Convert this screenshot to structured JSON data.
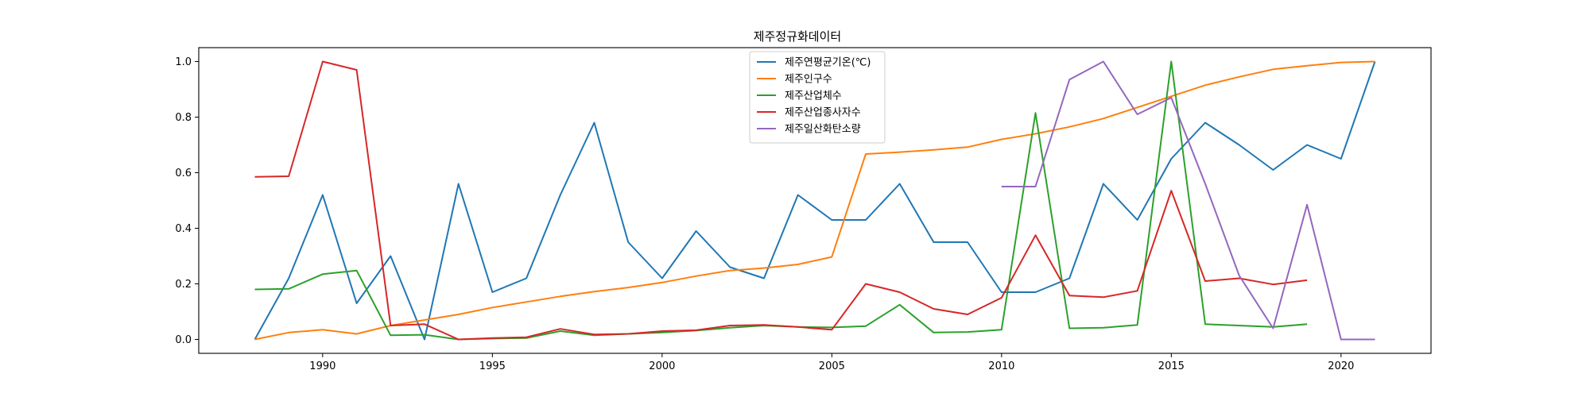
{
  "chart_data": {
    "type": "line",
    "title": "제주정규화데이터",
    "xlabel": "",
    "ylabel": "",
    "xlim": [
      1986.35,
      2022.65
    ],
    "ylim": [
      -0.05,
      1.05
    ],
    "xticks": [
      1990,
      1995,
      2000,
      2005,
      2010,
      2015,
      2020
    ],
    "yticks": [
      0.0,
      0.2,
      0.4,
      0.6,
      0.8,
      1.0
    ],
    "grid": false,
    "legend_position": "top-center",
    "series": [
      {
        "name": "제주연평균기온(℃)",
        "color": "#1f77b4",
        "x": [
          1988,
          1989,
          1990,
          1991,
          1992,
          1993,
          1994,
          1995,
          1996,
          1997,
          1998,
          1999,
          2000,
          2001,
          2002,
          2003,
          2004,
          2005,
          2006,
          2007,
          2008,
          2009,
          2010,
          2011,
          2012,
          2013,
          2014,
          2015,
          2016,
          2017,
          2018,
          2019,
          2020,
          2021
        ],
        "y": [
          0.0,
          0.22,
          0.52,
          0.13,
          0.3,
          0.0,
          0.56,
          0.17,
          0.22,
          0.52,
          0.78,
          0.35,
          0.22,
          0.39,
          0.26,
          0.22,
          0.52,
          0.43,
          0.43,
          0.56,
          0.35,
          0.35,
          0.17,
          0.17,
          0.22,
          0.56,
          0.43,
          0.65,
          0.78,
          0.7,
          0.61,
          0.7,
          0.65,
          1.0
        ]
      },
      {
        "name": "제주인구수",
        "color": "#ff7f0e",
        "x": [
          1988,
          1989,
          1990,
          1991,
          1992,
          1993,
          1994,
          1995,
          1996,
          1997,
          1998,
          1999,
          2000,
          2001,
          2002,
          2003,
          2004,
          2005,
          2006,
          2007,
          2008,
          2009,
          2010,
          2011,
          2012,
          2013,
          2014,
          2015,
          2016,
          2017,
          2018,
          2019,
          2020,
          2021
        ],
        "y": [
          0.0,
          0.025,
          0.035,
          0.02,
          0.05,
          0.07,
          0.09,
          0.115,
          0.135,
          0.155,
          0.172,
          0.187,
          0.205,
          0.228,
          0.248,
          0.257,
          0.27,
          0.297,
          0.667,
          0.674,
          0.682,
          0.692,
          0.72,
          0.74,
          0.765,
          0.795,
          0.835,
          0.875,
          0.915,
          0.945,
          0.972,
          0.985,
          0.997,
          1.0
        ]
      },
      {
        "name": "제주산업체수",
        "color": "#2ca02c",
        "x": [
          1988,
          1989,
          1990,
          1991,
          1992,
          1993,
          1994,
          1995,
          1996,
          1997,
          1998,
          1999,
          2000,
          2001,
          2002,
          2003,
          2004,
          2005,
          2006,
          2007,
          2008,
          2009,
          2010,
          2011,
          2012,
          2013,
          2014,
          2015,
          2016,
          2017,
          2018,
          2019
        ],
        "y": [
          0.18,
          0.182,
          0.235,
          0.248,
          0.015,
          0.017,
          0.0,
          0.003,
          0.005,
          0.03,
          0.015,
          0.02,
          0.025,
          0.032,
          0.042,
          0.05,
          0.045,
          0.043,
          0.048,
          0.125,
          0.025,
          0.027,
          0.035,
          0.815,
          0.04,
          0.042,
          0.052,
          1.0,
          0.055,
          0.05,
          0.045,
          0.055
        ]
      },
      {
        "name": "제주산업종사자수",
        "color": "#d62728",
        "x": [
          1988,
          1989,
          1990,
          1991,
          1992,
          1993,
          1994,
          1995,
          1996,
          1997,
          1998,
          1999,
          2000,
          2001,
          2002,
          2003,
          2004,
          2005,
          2006,
          2007,
          2008,
          2009,
          2010,
          2011,
          2012,
          2013,
          2014,
          2015,
          2016,
          2017,
          2018,
          2019
        ],
        "y": [
          0.585,
          0.587,
          1.0,
          0.97,
          0.05,
          0.055,
          0.0,
          0.005,
          0.008,
          0.038,
          0.018,
          0.02,
          0.03,
          0.033,
          0.05,
          0.052,
          0.045,
          0.035,
          0.2,
          0.17,
          0.11,
          0.09,
          0.15,
          0.375,
          0.158,
          0.152,
          0.175,
          0.535,
          0.21,
          0.22,
          0.198,
          0.213
        ]
      },
      {
        "name": "제주일산화탄소량",
        "color": "#9467bd",
        "x": [
          2010,
          2011,
          2012,
          2013,
          2014,
          2015,
          2016,
          2017,
          2018,
          2019,
          2020,
          2021
        ],
        "y": [
          0.55,
          0.55,
          0.935,
          1.0,
          0.81,
          0.87,
          0.56,
          0.23,
          0.04,
          0.485,
          0.0,
          0.0
        ]
      }
    ]
  }
}
